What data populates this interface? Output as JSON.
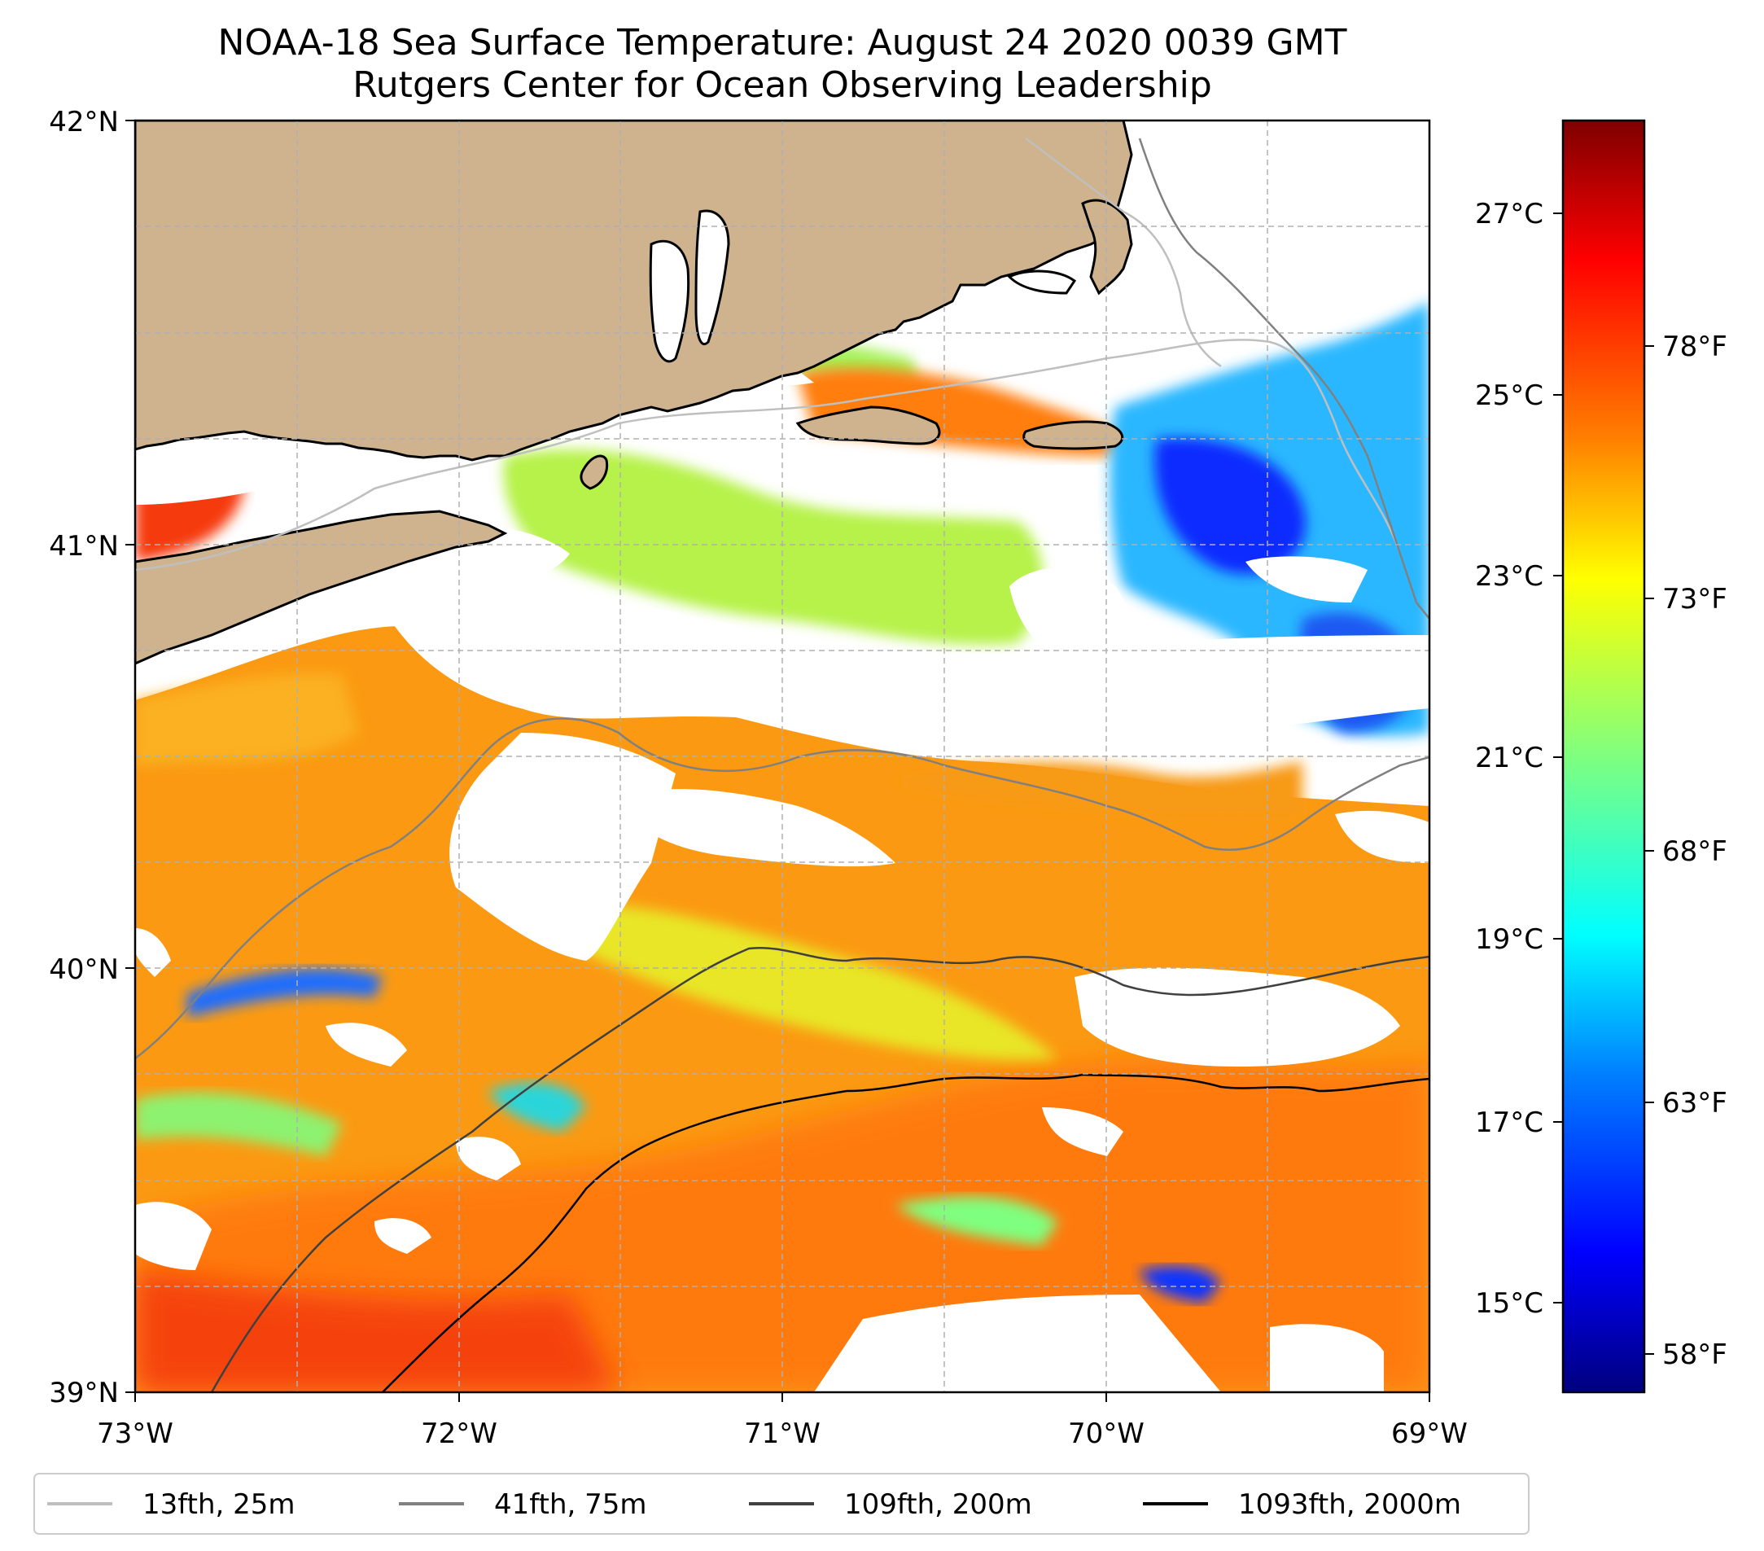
{
  "title": {
    "line1": "NOAA-18 Sea Surface Temperature: August 24 2020 0039 GMT",
    "line2": "Rutgers Center for Ocean Observing Leadership"
  },
  "map": {
    "lon_range": [
      -73,
      -69
    ],
    "lat_range": [
      39,
      42
    ],
    "x_tick_labels": [
      "73°W",
      "72°W",
      "71°W",
      "70°W",
      "69°W"
    ],
    "y_tick_labels": [
      "39°N",
      "40°N",
      "41°N",
      "42°N"
    ],
    "land_color": "#cfb38f",
    "gridlines": true,
    "regions": [
      "Long Island",
      "Connecticut",
      "Rhode Island",
      "Massachusetts",
      "Cape Cod",
      "Martha's Vineyard",
      "Nantucket"
    ]
  },
  "colorbar": {
    "celsius_labels": [
      "27°C",
      "25°C",
      "23°C",
      "21°C",
      "19°C",
      "17°C",
      "15°C"
    ],
    "fahrenheit_labels": [
      "78°F",
      "73°F",
      "68°F",
      "63°F",
      "58°F"
    ],
    "colormap": "jet",
    "colors": [
      "#00007f",
      "#0000ff",
      "#007fff",
      "#00ffff",
      "#7fff7f",
      "#ffff00",
      "#ff7f00",
      "#ff0000",
      "#7f0000"
    ]
  },
  "legend": {
    "placement": "bottom",
    "items": [
      {
        "label": "13fth, 25m",
        "color": "#bfbfbf"
      },
      {
        "label": "41fth, 75m",
        "color": "#808080"
      },
      {
        "label": "109fth, 200m",
        "color": "#404040"
      },
      {
        "label": "1093fth, 2000m",
        "color": "#000000"
      }
    ]
  }
}
